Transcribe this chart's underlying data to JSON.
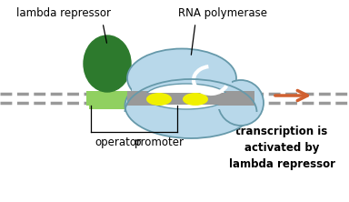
{
  "white": "#ffffff",
  "bg": "#ffffff",
  "dna_color": "#999999",
  "green_dark": "#2d7a2d",
  "green_light": "#90d060",
  "poly_color": "#b8d8ea",
  "poly_edge": "#6699aa",
  "yellow": "#f0f000",
  "arrow_color": "#d06030",
  "text_color": "#000000",
  "label_lambda": "lambda repressor",
  "label_rna": "RNA polymerase",
  "label_op": "operator",
  "label_prom": "promoter",
  "label_transcript": "transcription is\nactivated by\nlambda repressor",
  "figw": 3.84,
  "figh": 2.22,
  "dpi": 100
}
